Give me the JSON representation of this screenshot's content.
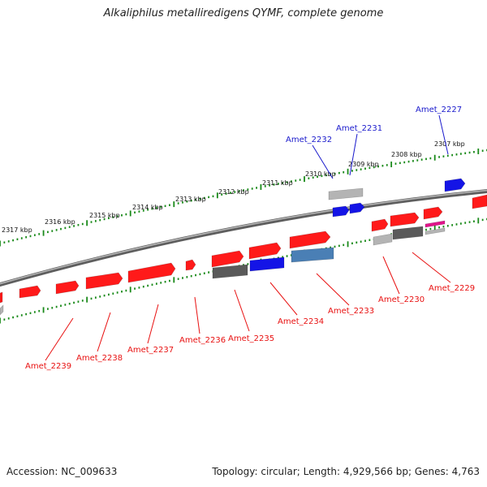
{
  "title": "Alkaliphilus metalliredigens QYMF, complete genome",
  "footer": {
    "accession": "Accession: NC_009633",
    "summary": "Topology: circular; Length: 4,929,566 bp; Genes: 4,763"
  },
  "colors": {
    "backbone": "#7a7a7a",
    "tick": "#1a8a1a",
    "forward_gene": "#ff1a1a",
    "reverse_label": "#e81010",
    "forward_label": "#1a1acc",
    "blue_gene": "#1414e6",
    "steel_gene": "#4a7fb5",
    "gray_gene": "#b4b4b4",
    "dark_gene": "#5a5a5a",
    "pink_gene": "#e0158a"
  },
  "scale_labels": [
    "2317 kbp",
    "2316 kbp",
    "2315 kbp",
    "2314 kbp",
    "2313 kbp",
    "2312 kbp",
    "2311 kbp",
    "2310 kbp",
    "2309 kbp",
    "2308 kbp",
    "2307 kbp"
  ],
  "labels": [
    {
      "text": "Amet_2227",
      "strand": "forward"
    },
    {
      "text": "Amet_2231",
      "strand": "forward"
    },
    {
      "text": "Amet_2232",
      "strand": "forward"
    },
    {
      "text": "Amet_2229",
      "strand": "reverse"
    },
    {
      "text": "Amet_2230",
      "strand": "reverse"
    },
    {
      "text": "Amet_2233",
      "strand": "reverse"
    },
    {
      "text": "Amet_2234",
      "strand": "reverse"
    },
    {
      "text": "Amet_2235",
      "strand": "reverse"
    },
    {
      "text": "Amet_2236",
      "strand": "reverse"
    },
    {
      "text": "Amet_2237",
      "strand": "reverse"
    },
    {
      "text": "Amet_2238",
      "strand": "reverse"
    },
    {
      "text": "Amet_2239",
      "strand": "reverse"
    }
  ]
}
